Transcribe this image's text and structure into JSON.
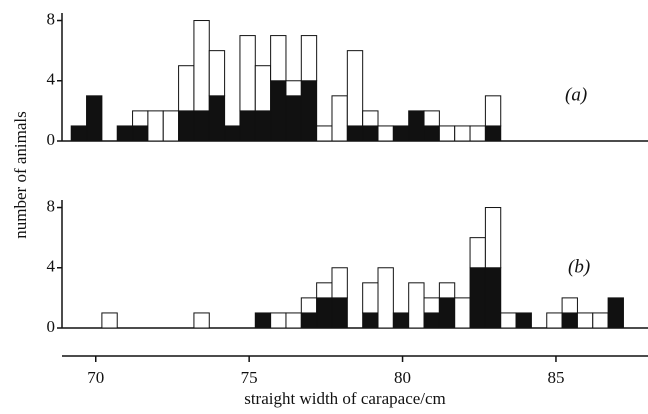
{
  "chart_data": [
    {
      "type": "histogram",
      "y_label": "number of animals",
      "annotation": "(a)",
      "bins": [
        69.2,
        69.7,
        70.2,
        70.7,
        71.2,
        71.7,
        72.2,
        72.7,
        73.2,
        73.7,
        74.2,
        74.7,
        75.2,
        75.7,
        76.2,
        76.7,
        77.2,
        77.7,
        78.2,
        78.7,
        79.2,
        79.7,
        80.2,
        80.7,
        81.2,
        81.7,
        82.2,
        82.7,
        83.2,
        83.7,
        84.2,
        84.7,
        85.2,
        85.7,
        86.2,
        86.7,
        87.2
      ],
      "series": [
        {
          "color": "#111111",
          "values": [
            1,
            3,
            0,
            1,
            1,
            0,
            0,
            2,
            2,
            3,
            1,
            2,
            2,
            4,
            3,
            4,
            0,
            0,
            1,
            1,
            0,
            1,
            2,
            1,
            0,
            0,
            0,
            1,
            0,
            0,
            0,
            0,
            0,
            0,
            0,
            0
          ]
        },
        {
          "color": "#ffffff",
          "values": [
            0,
            0,
            0,
            0,
            1,
            2,
            2,
            3,
            6,
            3,
            0,
            5,
            3,
            3,
            1,
            3,
            1,
            3,
            5,
            1,
            1,
            0,
            0,
            1,
            1,
            1,
            1,
            2,
            0,
            0,
            0,
            0,
            0,
            0,
            0,
            0
          ]
        }
      ],
      "xlim": [
        68.9,
        88
      ],
      "ylim": [
        0,
        8.5
      ],
      "yticks": [
        0,
        4,
        8
      ]
    },
    {
      "type": "histogram",
      "annotation": "(b)",
      "x_label": "straight width of carapace/cm",
      "bins": [
        69.2,
        69.7,
        70.2,
        70.7,
        71.2,
        71.7,
        72.2,
        72.7,
        73.2,
        73.7,
        74.2,
        74.7,
        75.2,
        75.7,
        76.2,
        76.7,
        77.2,
        77.7,
        78.2,
        78.7,
        79.2,
        79.7,
        80.2,
        80.7,
        81.2,
        81.7,
        82.2,
        82.7,
        83.2,
        83.7,
        84.2,
        84.7,
        85.2,
        85.7,
        86.2,
        86.7,
        87.2
      ],
      "series": [
        {
          "color": "#111111",
          "values": [
            0,
            0,
            0,
            0,
            0,
            0,
            0,
            0,
            0,
            0,
            0,
            0,
            1,
            0,
            0,
            1,
            2,
            2,
            0,
            1,
            0,
            1,
            0,
            1,
            2,
            0,
            4,
            4,
            0,
            1,
            0,
            0,
            1,
            0,
            0,
            2
          ]
        },
        {
          "color": "#ffffff",
          "values": [
            0,
            0,
            1,
            0,
            0,
            0,
            0,
            0,
            1,
            0,
            0,
            0,
            0,
            1,
            1,
            1,
            1,
            2,
            0,
            2,
            4,
            0,
            3,
            1,
            1,
            2,
            2,
            4,
            1,
            0,
            0,
            1,
            1,
            1,
            1,
            0
          ]
        }
      ],
      "xlim": [
        68.9,
        88
      ],
      "ylim": [
        0,
        8.5
      ],
      "yticks": [
        0,
        4,
        8
      ],
      "xticks": [
        70,
        75,
        80,
        85
      ]
    }
  ]
}
